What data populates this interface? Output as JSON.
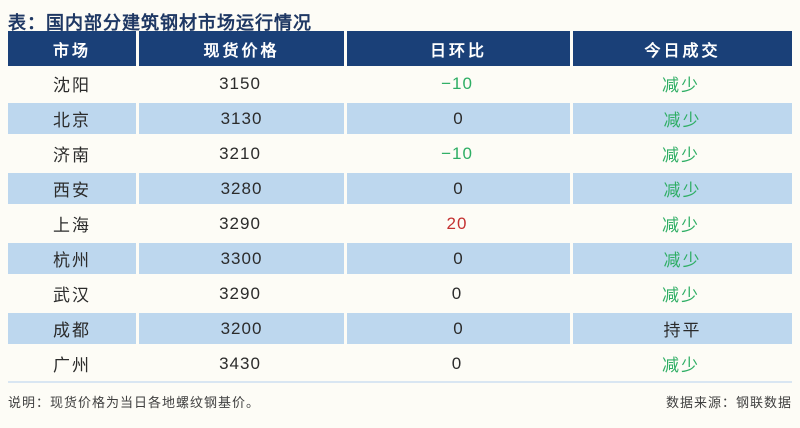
{
  "title": "表：国内部分建筑钢材市场运行情况",
  "table": {
    "columns": [
      "市场",
      "现货价格",
      "日环比",
      "今日成交"
    ],
    "rows": [
      {
        "market": "沈阳",
        "price": "3150",
        "change": "−10",
        "change_color": "green",
        "volume": "减少",
        "volume_color": "green"
      },
      {
        "market": "北京",
        "price": "3130",
        "change": "0",
        "change_color": "neutral",
        "volume": "减少",
        "volume_color": "green"
      },
      {
        "market": "济南",
        "price": "3210",
        "change": "−10",
        "change_color": "green",
        "volume": "减少",
        "volume_color": "green"
      },
      {
        "market": "西安",
        "price": "3280",
        "change": "0",
        "change_color": "neutral",
        "volume": "减少",
        "volume_color": "green"
      },
      {
        "market": "上海",
        "price": "3290",
        "change": "20",
        "change_color": "red",
        "volume": "减少",
        "volume_color": "green"
      },
      {
        "market": "杭州",
        "price": "3300",
        "change": "0",
        "change_color": "neutral",
        "volume": "减少",
        "volume_color": "green"
      },
      {
        "market": "武汉",
        "price": "3290",
        "change": "0",
        "change_color": "neutral",
        "volume": "减少",
        "volume_color": "green"
      },
      {
        "market": "成都",
        "price": "3200",
        "change": "0",
        "change_color": "neutral",
        "volume": "持平",
        "volume_color": "neutral"
      },
      {
        "market": "广州",
        "price": "3430",
        "change": "0",
        "change_color": "neutral",
        "volume": "减少",
        "volume_color": "green"
      }
    ]
  },
  "footer": {
    "note": "说明：现货价格为当日各地螺纹钢基价。",
    "source": "数据来源：钢联数据"
  },
  "colors": {
    "header_bg": "#1a4078",
    "alt_row_bg": "#bdd7ee",
    "title_text": "#1f3864",
    "green": "#2eae64",
    "red": "#c43131",
    "neutral": "#2b2b2b",
    "footer_text": "#404040"
  }
}
